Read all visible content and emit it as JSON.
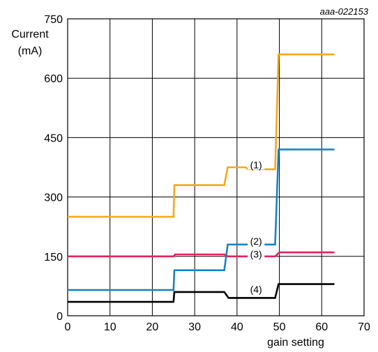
{
  "chart_data": {
    "type": "line",
    "figure_id": "aaa-022153",
    "ylabel_line1": "Current",
    "ylabel_line2": "(mA)",
    "xlabel": "gain setting",
    "xlim": [
      0,
      70
    ],
    "ylim": [
      0,
      750
    ],
    "xticks": [
      0,
      10,
      20,
      30,
      40,
      50,
      60,
      70
    ],
    "yticks": [
      0,
      150,
      300,
      450,
      600,
      750
    ],
    "grid": true,
    "series": [
      {
        "label": "(1)",
        "color": "#f5a81c",
        "x": [
          0,
          25,
          25.2,
          37,
          37.8,
          42,
          42.6,
          49,
          49.8,
          63
        ],
        "y": [
          250,
          250,
          330,
          330,
          375,
          375,
          370,
          370,
          660,
          660
        ]
      },
      {
        "label": "(2)",
        "color": "#1a84c4",
        "x": [
          0,
          25,
          25.2,
          37,
          37.8,
          49,
          49.8,
          63
        ],
        "y": [
          65,
          65,
          115,
          115,
          180,
          180,
          420,
          420
        ]
      },
      {
        "label": "(3)",
        "color": "#e0245e",
        "x": [
          0,
          25,
          25.4,
          37,
          37.8,
          49,
          50,
          63
        ],
        "y": [
          150,
          150,
          155,
          155,
          150,
          150,
          160,
          160
        ]
      },
      {
        "label": "(4)",
        "color": "#000000",
        "x": [
          0,
          25,
          25.2,
          37,
          38,
          49,
          49.8,
          63
        ],
        "y": [
          35,
          35,
          60,
          60,
          45,
          45,
          80,
          80
        ]
      }
    ],
    "annotations": [
      {
        "text": "(1)",
        "x": 44.5,
        "y": 378
      },
      {
        "text": "(2)",
        "x": 44.5,
        "y": 185
      },
      {
        "text": "(3)",
        "x": 44.5,
        "y": 152
      },
      {
        "text": "(4)",
        "x": 44.5,
        "y": 63
      }
    ]
  }
}
